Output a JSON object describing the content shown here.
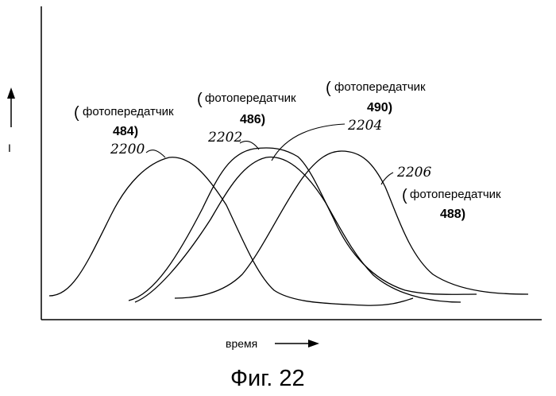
{
  "figure": {
    "caption": "Фиг. 22",
    "y_axis_label": "I",
    "x_axis_label": "время"
  },
  "curves": [
    {
      "ref": "2200",
      "label": "фотопередатчик",
      "number": "484)"
    },
    {
      "ref": "2202",
      "label": "фотопередатчик",
      "number": "486)"
    },
    {
      "ref": "2204",
      "label": "фотопередатчик",
      "number": "490)"
    },
    {
      "ref": "2206",
      "label": "фотопередатчик",
      "number": "488)"
    }
  ],
  "open_paren": "("
}
